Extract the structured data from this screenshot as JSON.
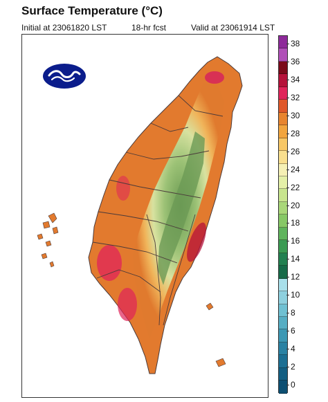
{
  "header": {
    "title": "Surface Temperature (°C)",
    "initial": "Initial at 23061820 LST",
    "forecast": "18-hr fcst",
    "valid": "Valid at 23061914 LST"
  },
  "colorbar": {
    "labels": [
      "38",
      "36",
      "34",
      "32",
      "30",
      "28",
      "26",
      "24",
      "22",
      "20",
      "18",
      "16",
      "14",
      "12",
      "10",
      "8",
      "6",
      "4",
      "2",
      "0"
    ],
    "colors": [
      "#8e2a9a",
      "#b04fb8",
      "#7a0a1a",
      "#b5123a",
      "#e0245a",
      "#e0582a",
      "#e8852f",
      "#f2a53e",
      "#f7c766",
      "#f9df8e",
      "#f5f0b5",
      "#e4f0a8",
      "#c8e58e",
      "#a9d779",
      "#87c866",
      "#5fb45c",
      "#3a9a52",
      "#228050",
      "#166a48",
      "#a8dfea",
      "#8ed0de",
      "#6fc0d2",
      "#56aec4",
      "#3c98b4",
      "#2a82a3",
      "#1c6f93",
      "#135e82",
      "#0d4f72"
    ]
  },
  "map": {
    "logo_icon": "cwa-logo-icon",
    "region": "Taiwan"
  }
}
